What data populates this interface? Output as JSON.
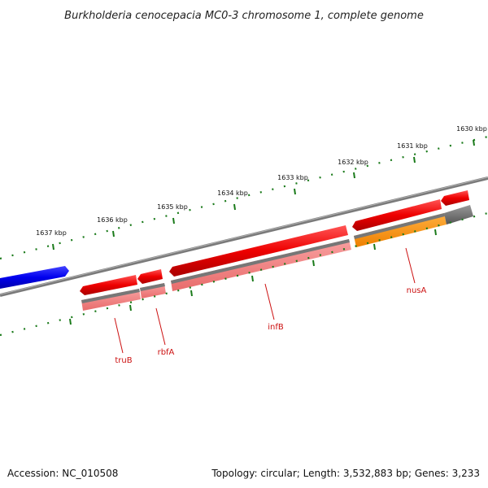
{
  "title": "Burkholderia cenocepacia MC0-3 chromosome 1, complete genome",
  "ticks": [
    {
      "kbp": 1637,
      "label": "1637 kbp"
    },
    {
      "kbp": 1636,
      "label": "1636 kbp"
    },
    {
      "kbp": 1635,
      "label": "1635 kbp"
    },
    {
      "kbp": 1634,
      "label": "1634 kbp"
    },
    {
      "kbp": 1633,
      "label": "1633 kbp"
    },
    {
      "kbp": 1632,
      "label": "1632 kbp"
    },
    {
      "kbp": 1631,
      "label": "1631 kbp"
    },
    {
      "kbp": 1630,
      "label": "1630 kbp"
    }
  ],
  "gene_labels": {
    "truB": "truB",
    "rbfA": "rbfA",
    "infB": "infB",
    "nusA": "nusA"
  },
  "colors": {
    "cds_forward": "#0000ee",
    "cds_reverse": "#ee0000",
    "gene_light": "#f08080",
    "gene_orange": "#ff8c00",
    "gene_grey": "#666666",
    "backbone": "#808080",
    "ruler": "#1a7a1a"
  },
  "footer": {
    "accession": "Accession: NC_010508",
    "summary": "Topology: circular; Length: 3,532,883 bp; Genes: 3,233"
  }
}
